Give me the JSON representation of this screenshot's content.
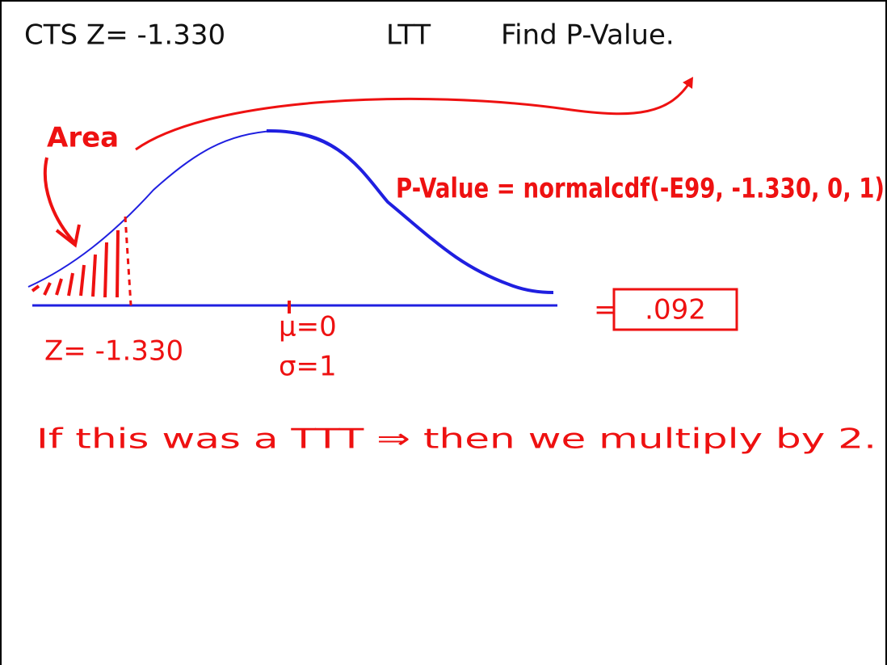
{
  "header": {
    "statistic": "CTS  Z= -1.330",
    "test": "LTT",
    "task": "Find  P-Value."
  },
  "graph": {
    "area_label": "Area",
    "formula": "P-Value = normalcdf(-E99, -1.330, 0, 1)",
    "equals": "=",
    "result": ".092",
    "z_label": "Z= -1.330",
    "mean_label": "μ=0",
    "sd_label": "σ=1"
  },
  "note": "If this was a TTT ⇒ then we multiply by 2."
}
